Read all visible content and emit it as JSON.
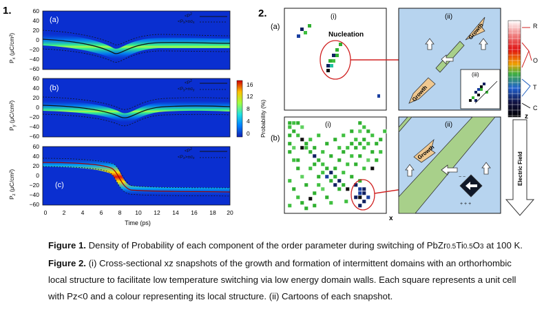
{
  "figure1": {
    "number": "1.",
    "panels": [
      {
        "tag": "(a)",
        "ylabel_main": "P",
        "ylabel_sub": "x",
        "ylabel_unit": " (μC/cm²)",
        "legend1": "<P",
        "legend2": "<P",
        "sup1": "2",
        "sub2a": "x",
        "sub2b": "x",
        "legend_tail": ">±σ"
      },
      {
        "tag": "(b)",
        "ylabel_main": "P",
        "ylabel_sub": "y",
        "ylabel_unit": " (μC/cm²)",
        "legend1": "<P",
        "legend2": "<P",
        "sup1": "2",
        "sub2a": "y",
        "sub2b": "y",
        "legend_tail": ">±σ"
      },
      {
        "tag": "(c)",
        "ylabel_main": "P",
        "ylabel_sub": "z",
        "ylabel_unit": " (μC/cm²)",
        "legend1": "<P",
        "legend2": "<P",
        "sup1": "2",
        "sub2a": "z",
        "sub2b": "z",
        "legend_tail": ">±σ"
      }
    ],
    "yticks": [
      "60",
      "40",
      "20",
      "0",
      "−20",
      "−40",
      "−60"
    ],
    "xticks": [
      "0",
      "2",
      "4",
      "6",
      "8",
      "10",
      "12",
      "14",
      "16",
      "18",
      "20"
    ],
    "xlabel": "Time (ps)",
    "colorbar": {
      "label": "Probability (%)",
      "ticks": [
        "16",
        "12",
        "8",
        "4",
        "0"
      ]
    }
  },
  "figure2": {
    "number": "2.",
    "row_a": "(a)",
    "row_b": "(b)",
    "panel_i": "(i)",
    "panel_ii": "(ii)",
    "panel_iii": "(iii)",
    "nucleation": "Nucleation",
    "growth": "Growth",
    "axis_x": "x",
    "axis_z": "z",
    "scale_labels": [
      "R",
      "O",
      "T",
      "C"
    ],
    "electric_field": "Electric Field"
  },
  "caption": {
    "fig1_label": "Figure 1.",
    "fig1_text": " Density of Probability of each component of the order parameter during switching of PbZr",
    "sub1": "0.5",
    "mid1": "Ti",
    "sub2": "0.5",
    "mid2": "O",
    "sub3": "3",
    "after": " at 100 K. ",
    "fig2_label": "Figure 2.",
    "fig2_text": " (i) Cross-sectional xz snapshots of the growth and formation of intermittent domains with an orthorhombic local structure to facilitate low temperature switching via low energy domain walls. Each square represents a unit cell with Pz<0 and a colour representing its local structure. (ii) Cartoons of each snapshot."
  }
}
